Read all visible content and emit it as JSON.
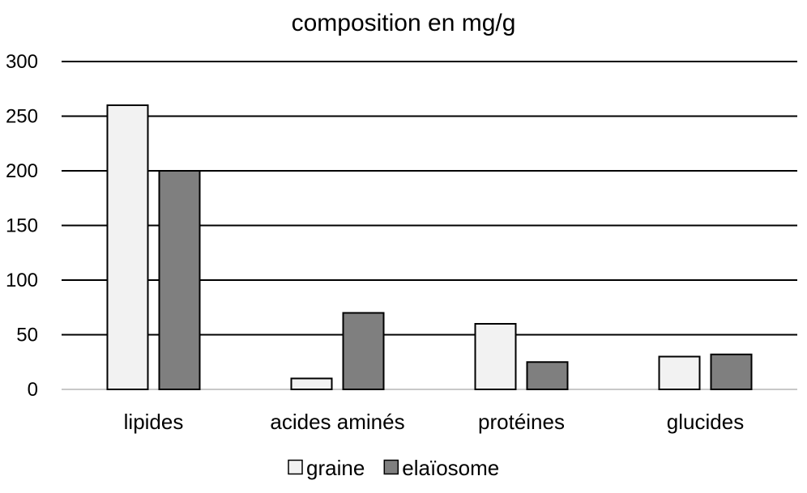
{
  "chart_data": {
    "type": "bar",
    "title": "composition en mg/g",
    "xlabel": "",
    "ylabel": "",
    "categories": [
      "lipides",
      "acides aminés",
      "protéines",
      "glucides"
    ],
    "series": [
      {
        "name": "graine",
        "values": [
          260,
          10,
          60,
          30
        ],
        "color": "#f2f2f2"
      },
      {
        "name": "elaïosome",
        "values": [
          200,
          70,
          25,
          32
        ],
        "color": "#7f7f7f"
      }
    ],
    "yticks": [
      "0",
      "50",
      "100",
      "150",
      "200",
      "250",
      "300"
    ],
    "ylim": [
      0,
      300
    ],
    "grid": true,
    "legend": "bottom-center",
    "bar_stroke": "#000000"
  }
}
